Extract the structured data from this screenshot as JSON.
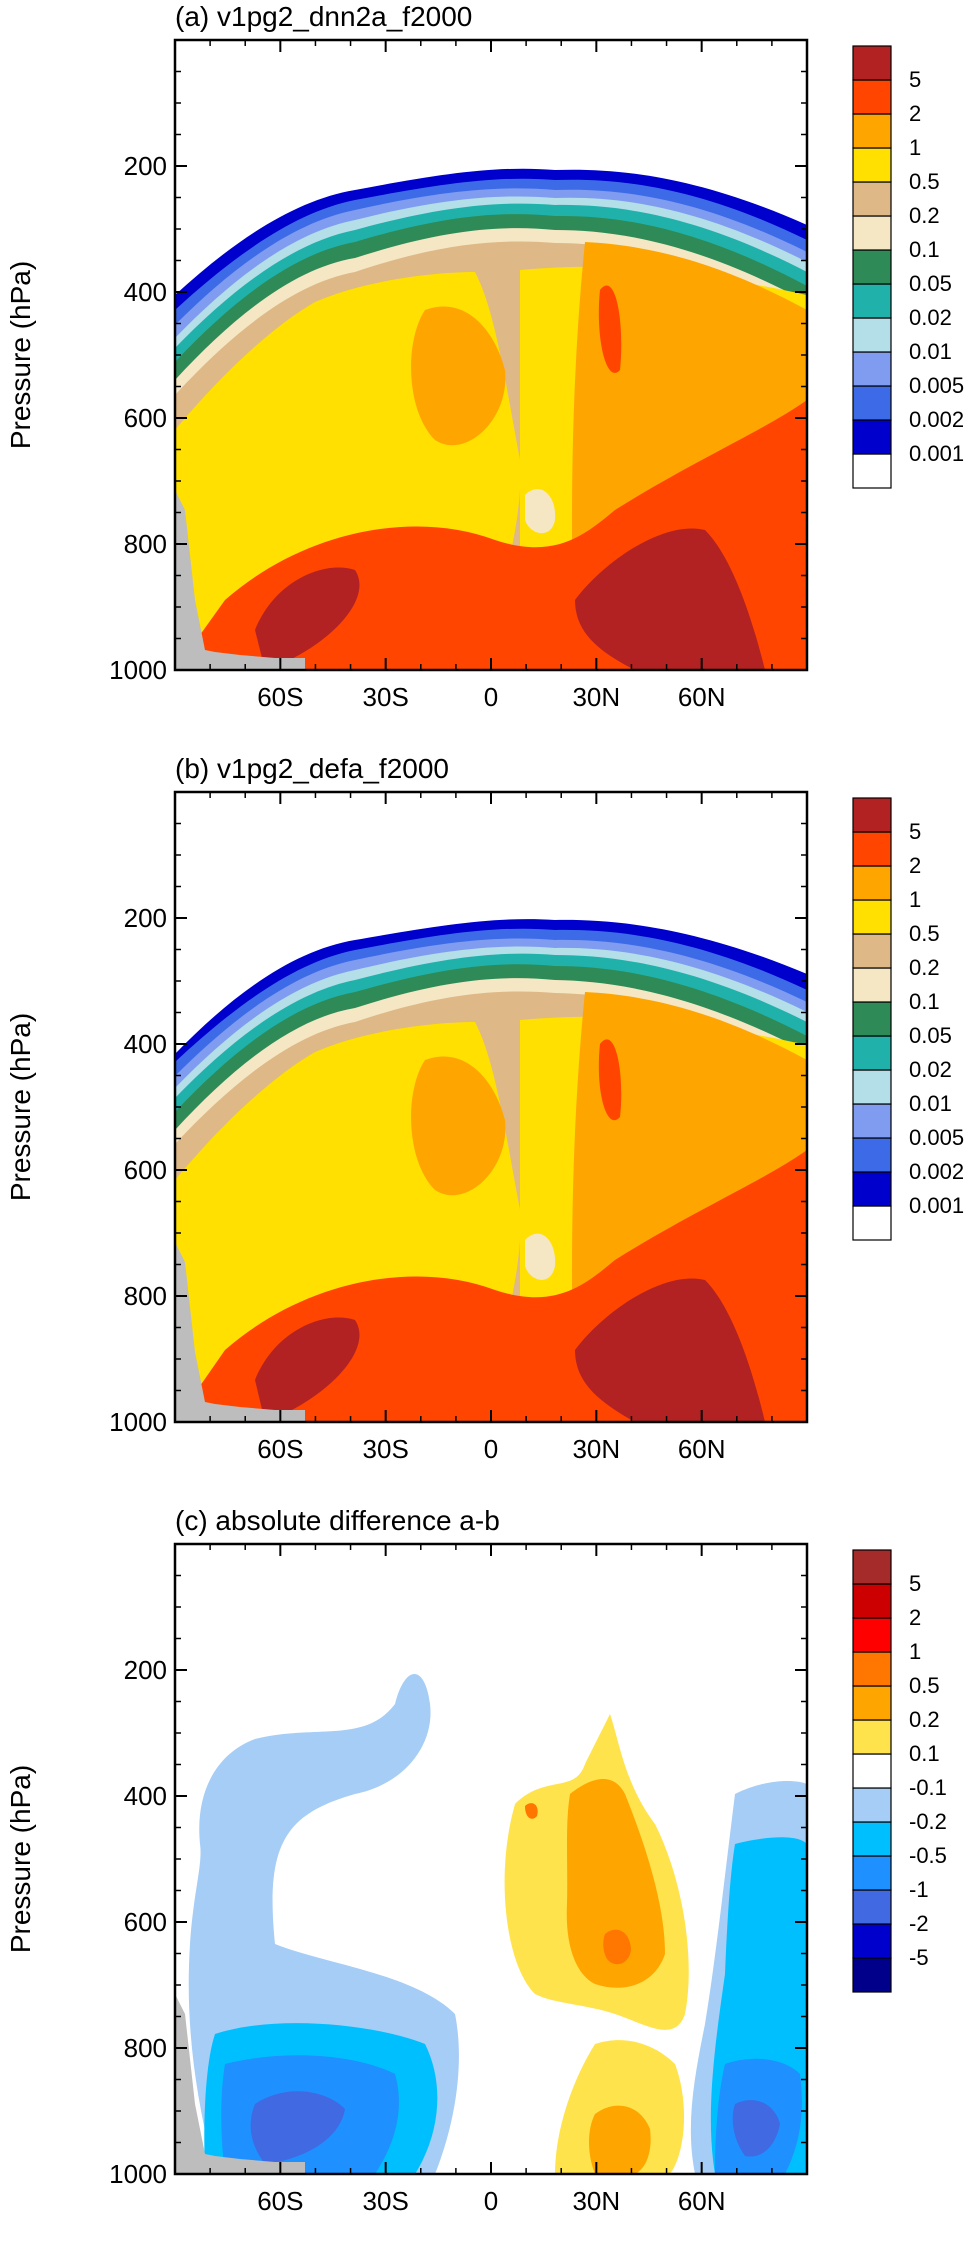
{
  "palette_main": [
    "#ffffff",
    "#0000cd",
    "#3d6be8",
    "#7f9cf0",
    "#b4dee8",
    "#20b2aa",
    "#2e8b57",
    "#f5e6c4",
    "#deb887",
    "#ffe000",
    "#ffa500",
    "#ff4500",
    "#b22222"
  ],
  "palette_diff": [
    "#00008b",
    "#0000cd",
    "#4169e1",
    "#1e90ff",
    "#00bfff",
    "#a6cdf5",
    "#ffffff",
    "#ffe34c",
    "#ffa500",
    "#ff7700",
    "#ff0000",
    "#cc0000",
    "#a52a2a"
  ],
  "colors": {
    "land": "#bdbdbd"
  },
  "chart_data": [
    {
      "type": "heatmap",
      "title": "(a) v1pg2_dnn2a_f2000",
      "ylabel": "Pressure (hPa)",
      "ylim": [
        1000,
        0
      ],
      "xlim": [
        -90,
        90
      ],
      "yticks": [
        200,
        400,
        600,
        800,
        1000
      ],
      "ytick_labels": [
        "200",
        "400",
        "600",
        "800",
        "1000"
      ],
      "xticks": [
        -60,
        -30,
        0,
        30,
        60
      ],
      "xtick_labels": [
        "60S",
        "30S",
        "0",
        "30N",
        "60N"
      ],
      "colorbar_levels": [
        "0.001",
        "0.002",
        "0.005",
        "0.01",
        "0.02",
        "0.05",
        "0.1",
        "0.2",
        "0.5",
        "1",
        "2",
        "5"
      ]
    },
    {
      "type": "heatmap",
      "title": "(b) v1pg2_defa_f2000",
      "ylabel": "Pressure (hPa)",
      "ylim": [
        1000,
        0
      ],
      "xlim": [
        -90,
        90
      ],
      "yticks": [
        200,
        400,
        600,
        800,
        1000
      ],
      "ytick_labels": [
        "200",
        "400",
        "600",
        "800",
        "1000"
      ],
      "xticks": [
        -60,
        -30,
        0,
        30,
        60
      ],
      "xtick_labels": [
        "60S",
        "30S",
        "0",
        "30N",
        "60N"
      ],
      "colorbar_levels": [
        "0.001",
        "0.002",
        "0.005",
        "0.01",
        "0.02",
        "0.05",
        "0.1",
        "0.2",
        "0.5",
        "1",
        "2",
        "5"
      ]
    },
    {
      "type": "heatmap",
      "title": "(c) absolute difference a-b",
      "ylabel": "Pressure (hPa)",
      "ylim": [
        1000,
        0
      ],
      "xlim": [
        -90,
        90
      ],
      "yticks": [
        200,
        400,
        600,
        800,
        1000
      ],
      "ytick_labels": [
        "200",
        "400",
        "600",
        "800",
        "1000"
      ],
      "xticks": [
        -60,
        -30,
        0,
        30,
        60
      ],
      "xtick_labels": [
        "60S",
        "30S",
        "0",
        "30N",
        "60N"
      ],
      "colorbar_levels": [
        "-5",
        "-2",
        "-1",
        "-0.5",
        "-0.2",
        "-0.1",
        "0.1",
        "0.2",
        "0.5",
        "1",
        "2",
        "5"
      ]
    }
  ]
}
